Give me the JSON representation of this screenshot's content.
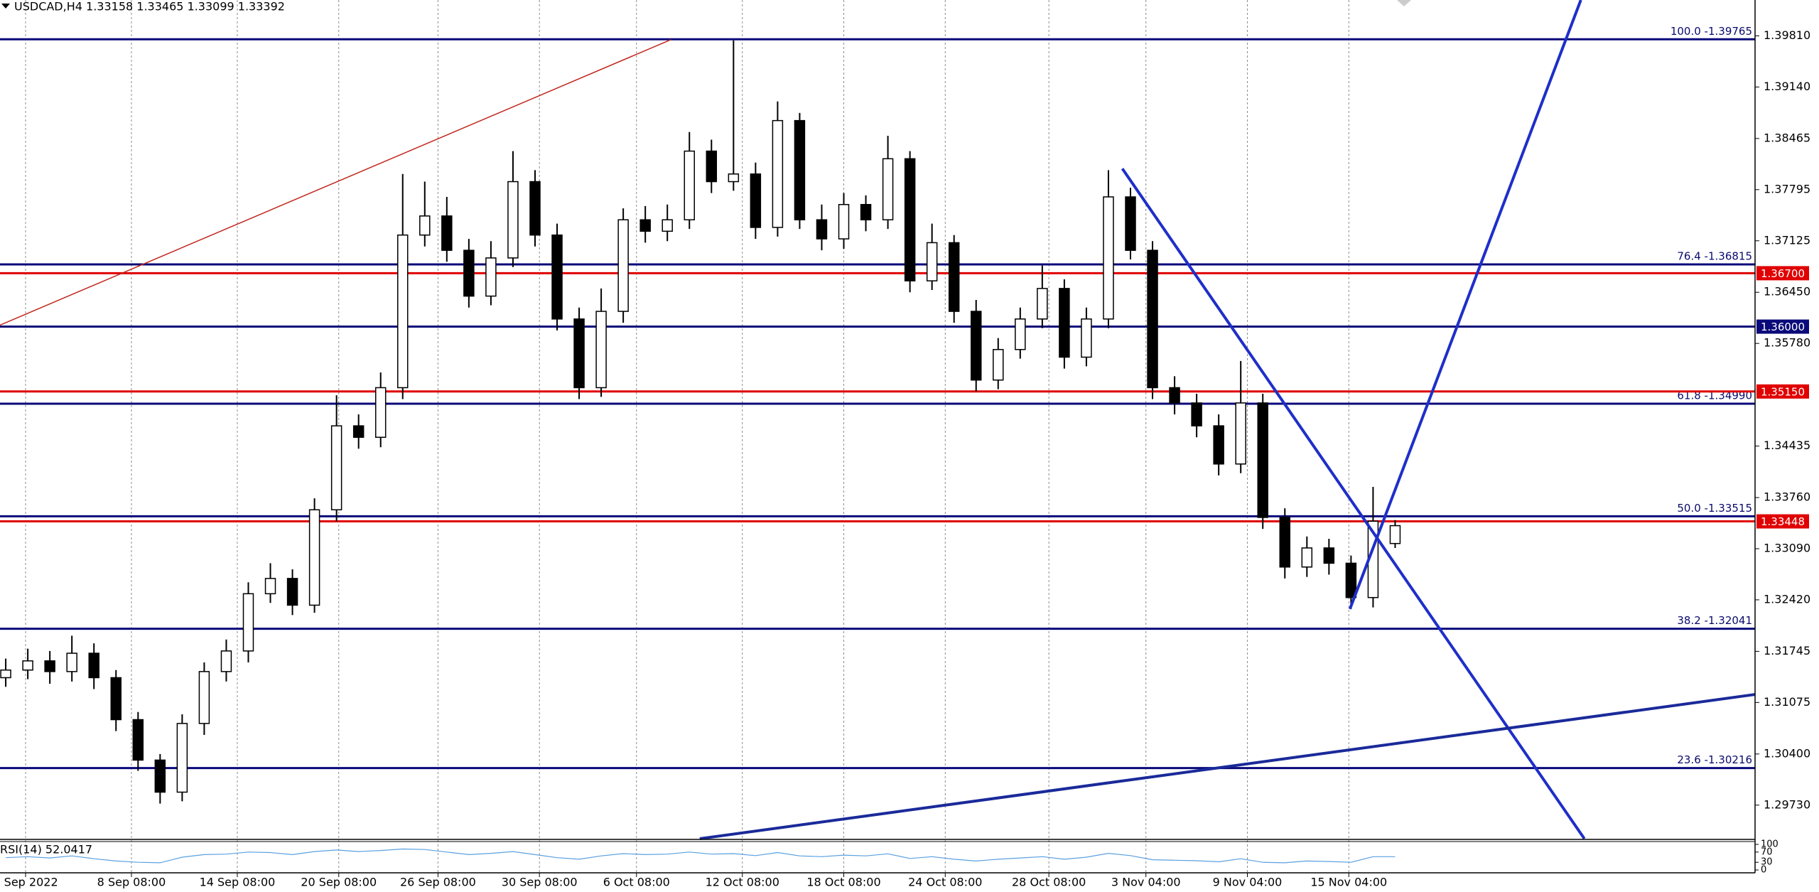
{
  "chart_data": {
    "type": "candlestick",
    "title": "USDCAD,H4  1.33158 1.33465 1.33099 1.33392",
    "bull_color": "#ffffff",
    "bear_color": "#000000",
    "series": [
      {
        "open": [
          1.314,
          1.315,
          1.3162,
          1.3148,
          1.3172,
          1.314,
          1.3085,
          1.3032,
          1.299,
          1.308,
          1.3148,
          1.3175,
          1.325,
          1.327,
          1.3235,
          1.336,
          1.347,
          1.3455,
          1.352,
          1.372,
          1.3745,
          1.37,
          1.364,
          1.369,
          1.379,
          1.372,
          1.361,
          1.352,
          1.362,
          1.374,
          1.3725,
          1.374,
          1.383,
          1.379,
          1.38,
          1.373,
          1.387,
          1.374,
          1.3715,
          1.376,
          1.374,
          1.382,
          1.366,
          1.371,
          1.362,
          1.353,
          1.357,
          1.361,
          1.365,
          1.356,
          1.361,
          1.377,
          1.37,
          1.352,
          1.35,
          1.347,
          1.342,
          1.35,
          1.335,
          1.3285,
          1.331,
          1.329,
          1.3245,
          1.33158
        ],
        "high": [
          1.3165,
          1.3178,
          1.3175,
          1.3195,
          1.3185,
          1.315,
          1.3095,
          1.304,
          1.3092,
          1.316,
          1.319,
          1.3265,
          1.329,
          1.3282,
          1.3375,
          1.351,
          1.3485,
          1.354,
          1.38,
          1.379,
          1.377,
          1.3715,
          1.3712,
          1.383,
          1.3805,
          1.3735,
          1.3625,
          1.365,
          1.3755,
          1.3758,
          1.376,
          1.3855,
          1.3845,
          1.3975,
          1.3815,
          1.3895,
          1.388,
          1.376,
          1.3775,
          1.3772,
          1.385,
          1.383,
          1.3735,
          1.372,
          1.3635,
          1.3585,
          1.3625,
          1.368,
          1.3662,
          1.3625,
          1.3805,
          1.3782,
          1.3712,
          1.3535,
          1.3512,
          1.3485,
          1.3555,
          1.3512,
          1.3362,
          1.3325,
          1.3322,
          1.33,
          1.339,
          1.33465
        ],
        "low": [
          1.3128,
          1.3138,
          1.3132,
          1.3135,
          1.3125,
          1.307,
          1.3018,
          1.2975,
          1.2978,
          1.3065,
          1.3135,
          1.316,
          1.3238,
          1.3222,
          1.3225,
          1.3345,
          1.344,
          1.3442,
          1.3505,
          1.3705,
          1.3685,
          1.3625,
          1.3628,
          1.3678,
          1.3705,
          1.3595,
          1.3505,
          1.3508,
          1.3605,
          1.371,
          1.3712,
          1.3728,
          1.3775,
          1.3778,
          1.3715,
          1.3718,
          1.3728,
          1.37,
          1.3702,
          1.3725,
          1.3728,
          1.3645,
          1.3648,
          1.3605,
          1.3515,
          1.3518,
          1.3558,
          1.3598,
          1.3545,
          1.3548,
          1.3598,
          1.3688,
          1.3505,
          1.3485,
          1.3455,
          1.3405,
          1.3408,
          1.3335,
          1.327,
          1.3272,
          1.3275,
          1.323,
          1.3232,
          1.33099
        ],
        "close": [
          1.315,
          1.3162,
          1.3148,
          1.3172,
          1.314,
          1.3085,
          1.3032,
          1.299,
          1.308,
          1.3148,
          1.3175,
          1.325,
          1.327,
          1.3235,
          1.336,
          1.347,
          1.3455,
          1.352,
          1.372,
          1.3745,
          1.37,
          1.364,
          1.369,
          1.379,
          1.372,
          1.361,
          1.352,
          1.362,
          1.374,
          1.3725,
          1.374,
          1.383,
          1.379,
          1.38,
          1.373,
          1.387,
          1.374,
          1.3715,
          1.376,
          1.374,
          1.382,
          1.366,
          1.371,
          1.362,
          1.353,
          1.357,
          1.361,
          1.365,
          1.356,
          1.361,
          1.377,
          1.37,
          1.352,
          1.35,
          1.347,
          1.342,
          1.35,
          1.335,
          1.3285,
          1.331,
          1.329,
          1.3245,
          1.3345,
          1.33392
        ]
      }
    ],
    "xlim": [
      -0.26,
      79.32
    ],
    "xticks": [
      {
        "value": 0.9,
        "label": "2 Sep 2022"
      },
      {
        "value": 5.7,
        "label": "8 Sep 08:00"
      },
      {
        "value": 10.5,
        "label": "14 Sep 08:00"
      },
      {
        "value": 15.1,
        "label": "20 Sep 08:00"
      },
      {
        "value": 19.6,
        "label": "26 Sep 08:00"
      },
      {
        "value": 24.2,
        "label": "30 Sep 08:00"
      },
      {
        "value": 28.6,
        "label": "6 Oct 08:00"
      },
      {
        "value": 33.4,
        "label": "12 Oct 08:00"
      },
      {
        "value": 38.0,
        "label": "18 Oct 08:00"
      },
      {
        "value": 42.6,
        "label": "24 Oct 08:00"
      },
      {
        "value": 47.3,
        "label": "28 Oct 08:00"
      },
      {
        "value": 51.7,
        "label": "3 Nov 04:00"
      },
      {
        "value": 56.3,
        "label": "9 Nov 04:00"
      },
      {
        "value": 60.9,
        "label": "15 Nov 04:00"
      }
    ],
    "ylim": [
      1.2929,
      1.4028
    ],
    "yticks": [
      {
        "value": 1.3981,
        "label": "1.39810"
      },
      {
        "value": 1.3914,
        "label": "1.39140"
      },
      {
        "value": 1.38465,
        "label": "1.38465"
      },
      {
        "value": 1.37795,
        "label": "1.37795"
      },
      {
        "value": 1.37125,
        "label": "1.37125"
      },
      {
        "value": 1.3645,
        "label": "1.36450"
      },
      {
        "value": 1.3578,
        "label": "1.35780"
      },
      {
        "value": 1.34435,
        "label": "1.34435"
      },
      {
        "value": 1.3376,
        "label": "1.33760"
      },
      {
        "value": 1.3309,
        "label": "1.33090"
      },
      {
        "value": 1.3242,
        "label": "1.32420"
      },
      {
        "value": 1.31745,
        "label": "1.31745"
      },
      {
        "value": 1.31075,
        "label": "1.31075"
      },
      {
        "value": 1.304,
        "label": "1.30400"
      },
      {
        "value": 1.2973,
        "label": "1.29730"
      }
    ],
    "grid": "vertical",
    "fib_color": "#0a0a7a",
    "fib_levels": [
      {
        "value": 1.39765,
        "label": "100.0 -1.39765"
      },
      {
        "value": 1.36815,
        "label": "76.4 -1.36815"
      },
      {
        "value": 1.3499,
        "label": "61.8 -1.34990"
      },
      {
        "value": 1.33515,
        "label": "50.0 -1.33515"
      },
      {
        "value": 1.32041,
        "label": "38.2 -1.32041"
      },
      {
        "value": 1.30216,
        "label": "23.6 -1.30216"
      }
    ],
    "price_lines": [
      {
        "value": 1.367,
        "label": "1.36700",
        "color": "#e00000"
      },
      {
        "value": 1.36,
        "label": "1.36000",
        "color": "#0a0a7a"
      },
      {
        "value": 1.3515,
        "label": "1.35150",
        "color": "#e00000"
      },
      {
        "value": 1.33448,
        "label": "1.33448",
        "color": "#e00000"
      }
    ],
    "trendlines": [
      {
        "start": [
          -0.26,
          1.3602
        ],
        "end": [
          30.16,
          1.3976
        ],
        "color": "#c0281e",
        "width": 1.5
      },
      {
        "start": [
          50.63,
          1.3807
        ],
        "end": [
          71.58,
          1.2929
        ],
        "color": "#1e2fc8",
        "width": 4
      },
      {
        "start": [
          60.95,
          1.323
        ],
        "end": [
          71.42,
          1.4028
        ],
        "color": "#1e2fc8",
        "width": 4
      },
      {
        "start": [
          31.47,
          1.2929
        ],
        "end": [
          79.32,
          1.3118
        ],
        "color": "#1a2a9a",
        "width": 4
      }
    ],
    "rsi": {
      "label": "RSI(14) 52.0417",
      "color": "#5aa0e0",
      "ylim": [
        0,
        100
      ],
      "yticks": [
        100,
        70,
        30,
        0
      ],
      "values": [
        48,
        52,
        47,
        55,
        44,
        35,
        30,
        28,
        50,
        60,
        62,
        70,
        68,
        60,
        72,
        78,
        72,
        76,
        82,
        80,
        70,
        60,
        65,
        72,
        60,
        48,
        42,
        55,
        64,
        60,
        62,
        70,
        62,
        64,
        56,
        68,
        55,
        52,
        58,
        55,
        63,
        45,
        52,
        42,
        35,
        42,
        47,
        52,
        42,
        50,
        65,
        56,
        40,
        38,
        36,
        32,
        44,
        30,
        28,
        35,
        33,
        30,
        52,
        52.0417
      ]
    }
  }
}
